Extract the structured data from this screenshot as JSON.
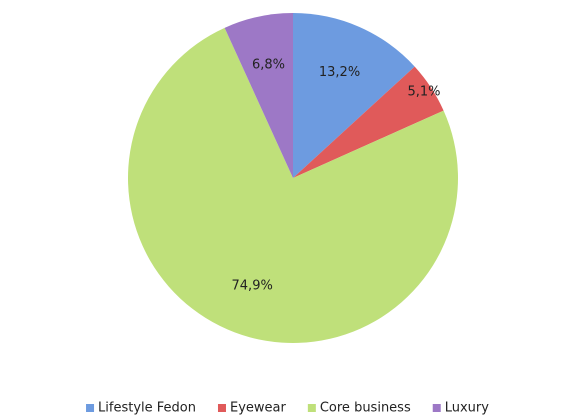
{
  "chart_data": {
    "type": "pie",
    "categories": [
      "Lifestyle Fedon",
      "Eyewear",
      "Core business",
      "Luxury"
    ],
    "values": [
      13.2,
      5.1,
      74.9,
      6.8
    ],
    "value_labels": [
      "13,2%",
      "5,1%",
      "74,9%",
      "6,8%"
    ],
    "colors": [
      "#6d9be0",
      "#e05a5a",
      "#bfe07a",
      "#9d78c6"
    ],
    "legend": "bottom"
  }
}
